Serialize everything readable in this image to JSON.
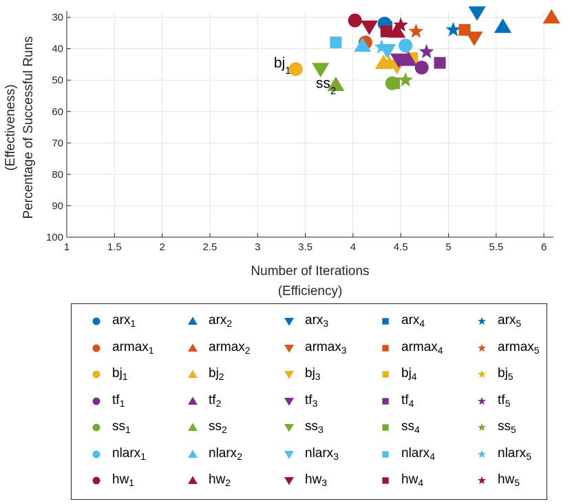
{
  "chart_data": {
    "type": "scatter",
    "title": "",
    "xlabel": [
      "Number of Iterations",
      "(Efficiency)"
    ],
    "ylabel": [
      "(Effectiveness)",
      "Percentage of Successful Runs"
    ],
    "xlim": [
      1,
      6.1
    ],
    "ylim": [
      100,
      28
    ],
    "y_reversed": true,
    "grid": true,
    "xticks": [
      1,
      1.5,
      2,
      2.5,
      3,
      3.5,
      4,
      4.5,
      5,
      5.5,
      6
    ],
    "xtick_labels": [
      "1",
      "1.5",
      "2",
      "2.5",
      "3",
      "3.5",
      "4",
      "4.5",
      "5",
      "5.5",
      "6"
    ],
    "yticks": [
      30,
      40,
      50,
      60,
      70,
      80,
      90,
      100
    ],
    "ytick_labels": [
      "30",
      "40",
      "50",
      "60",
      "70",
      "80",
      "90",
      "100"
    ],
    "colors": {
      "arx": "#0072BD",
      "armax": "#D95319",
      "bj": "#EDB120",
      "tf": "#7E2F8E",
      "ss": "#77AC30",
      "nlarx": "#4DBEEE",
      "hw": "#A2142F"
    },
    "shapes": [
      "circle",
      "triangle-up",
      "triangle-down",
      "square",
      "star"
    ],
    "series": [
      {
        "name": "arx",
        "sub": "1",
        "family": "arx",
        "shape": "circle",
        "x": 4.33,
        "y": 32
      },
      {
        "name": "arx",
        "sub": "2",
        "family": "arx",
        "shape": "triangle-up",
        "x": 5.57,
        "y": 33
      },
      {
        "name": "arx",
        "sub": "3",
        "family": "arx",
        "shape": "triangle-down",
        "x": 5.3,
        "y": 28.5
      },
      {
        "name": "arx",
        "sub": "4",
        "family": "arx",
        "shape": "square",
        "x": 4.35,
        "y": 33
      },
      {
        "name": "arx",
        "sub": "5",
        "family": "arx",
        "shape": "star",
        "x": 5.05,
        "y": 34
      },
      {
        "name": "armax",
        "sub": "1",
        "family": "armax",
        "shape": "circle",
        "x": 4.13,
        "y": 38
      },
      {
        "name": "armax",
        "sub": "2",
        "family": "armax",
        "shape": "triangle-up",
        "x": 6.08,
        "y": 30
      },
      {
        "name": "armax",
        "sub": "3",
        "family": "armax",
        "shape": "triangle-down",
        "x": 5.27,
        "y": 36.5
      },
      {
        "name": "armax",
        "sub": "4",
        "family": "armax",
        "shape": "square",
        "x": 5.17,
        "y": 34
      },
      {
        "name": "armax",
        "sub": "5",
        "family": "armax",
        "shape": "star",
        "x": 4.66,
        "y": 34.5
      },
      {
        "name": "bj",
        "sub": "1",
        "family": "bj",
        "shape": "circle",
        "x": 3.4,
        "y": 46.5
      },
      {
        "name": "bj",
        "sub": "2",
        "family": "bj",
        "shape": "triangle-up",
        "x": 4.32,
        "y": 44.5
      },
      {
        "name": "bj",
        "sub": "3",
        "family": "bj",
        "shape": "triangle-down",
        "x": 4.46,
        "y": 45.5
      },
      {
        "name": "bj",
        "sub": "4",
        "family": "bj",
        "shape": "square",
        "x": 4.62,
        "y": 43
      },
      {
        "name": "bj",
        "sub": "5",
        "family": "bj",
        "shape": "star",
        "x": 4.38,
        "y": 44.5
      },
      {
        "name": "tf",
        "sub": "1",
        "family": "tf",
        "shape": "circle",
        "x": 4.72,
        "y": 46
      },
      {
        "name": "tf",
        "sub": "2",
        "family": "tf",
        "shape": "triangle-up",
        "x": 4.58,
        "y": 43.5
      },
      {
        "name": "tf",
        "sub": "3",
        "family": "tf",
        "shape": "triangle-down",
        "x": 4.48,
        "y": 43.5
      },
      {
        "name": "tf",
        "sub": "4",
        "family": "tf",
        "shape": "square",
        "x": 4.91,
        "y": 44.5
      },
      {
        "name": "tf",
        "sub": "5",
        "family": "tf",
        "shape": "star",
        "x": 4.77,
        "y": 41
      },
      {
        "name": "ss",
        "sub": "1",
        "family": "ss",
        "shape": "circle",
        "x": 4.41,
        "y": 51
      },
      {
        "name": "ss",
        "sub": "2",
        "family": "ss",
        "shape": "triangle-up",
        "x": 3.82,
        "y": 51.5
      },
      {
        "name": "ss",
        "sub": "3",
        "family": "ss",
        "shape": "triangle-down",
        "x": 3.66,
        "y": 46.5
      },
      {
        "name": "ss",
        "sub": "4",
        "family": "ss",
        "shape": "square",
        "x": 4.43,
        "y": 51
      },
      {
        "name": "ss",
        "sub": "5",
        "family": "ss",
        "shape": "star",
        "x": 4.55,
        "y": 50
      },
      {
        "name": "nlarx",
        "sub": "1",
        "family": "nlarx",
        "shape": "circle",
        "x": 4.55,
        "y": 39
      },
      {
        "name": "nlarx",
        "sub": "2",
        "family": "nlarx",
        "shape": "triangle-up",
        "x": 4.1,
        "y": 39
      },
      {
        "name": "nlarx",
        "sub": "3",
        "family": "nlarx",
        "shape": "triangle-down",
        "x": 4.36,
        "y": 40.5
      },
      {
        "name": "nlarx",
        "sub": "4",
        "family": "nlarx",
        "shape": "square",
        "x": 3.82,
        "y": 38
      },
      {
        "name": "nlarx",
        "sub": "5",
        "family": "nlarx",
        "shape": "star",
        "x": 4.3,
        "y": 39.5
      },
      {
        "name": "hw",
        "sub": "1",
        "family": "hw",
        "shape": "circle",
        "x": 4.02,
        "y": 31
      },
      {
        "name": "hw",
        "sub": "2",
        "family": "hw",
        "shape": "triangle-up",
        "x": 4.46,
        "y": 34.5
      },
      {
        "name": "hw",
        "sub": "3",
        "family": "hw",
        "shape": "triangle-down",
        "x": 4.17,
        "y": 33
      },
      {
        "name": "hw",
        "sub": "4",
        "family": "hw",
        "shape": "square",
        "x": 4.35,
        "y": 34.5
      },
      {
        "name": "hw",
        "sub": "5",
        "family": "hw",
        "shape": "star",
        "x": 4.5,
        "y": 32.5
      }
    ],
    "annotations": [
      {
        "label": "bj",
        "sub": "1",
        "x": 3.17,
        "y": 46
      },
      {
        "label": "ss",
        "sub": "2",
        "x": 3.61,
        "y": 52.5
      }
    ],
    "legend": {
      "placement": "bottom",
      "columns": 5
    }
  }
}
